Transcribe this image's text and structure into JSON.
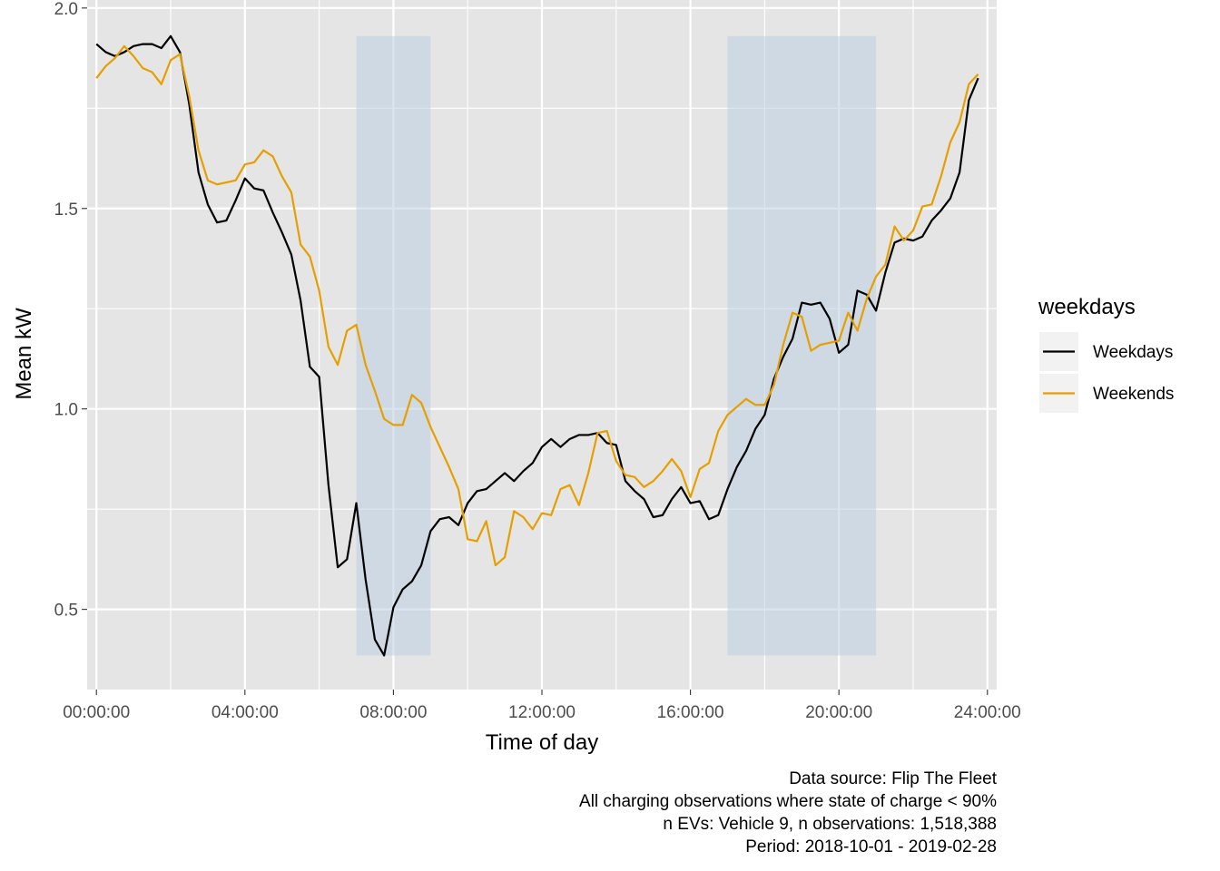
{
  "chart_data": {
    "type": "line",
    "xlabel": "Time of day",
    "ylabel": "Mean kW",
    "xlim": [
      -0.25,
      24.25
    ],
    "ylim": [
      0.3,
      2.02
    ],
    "x_ticks": [
      0,
      4,
      8,
      12,
      16,
      20,
      24
    ],
    "x_tick_labels": [
      "00:00:00",
      "04:00:00",
      "08:00:00",
      "12:00:00",
      "16:00:00",
      "20:00:00",
      "24:00:00"
    ],
    "y_ticks": [
      0.5,
      1.0,
      1.5,
      2.0
    ],
    "y_tick_labels": [
      "0.5",
      "1.0",
      "1.5",
      "2.0"
    ],
    "grid": true,
    "background": "#e5e5e5",
    "highlight_bands": [
      {
        "x_start": 7,
        "x_end": 9,
        "y_start": 0.385,
        "y_end": 1.93,
        "color": "#bdd0e3"
      },
      {
        "x_start": 17,
        "x_end": 21,
        "y_start": 0.385,
        "y_end": 1.93,
        "color": "#bdd0e3"
      }
    ],
    "legend": {
      "title": "weekdays",
      "position": "right"
    },
    "x_step_hours": 0.25,
    "series": [
      {
        "name": "Weekdays",
        "color": "#000000",
        "values": [
          1.91,
          1.89,
          1.88,
          1.89,
          1.905,
          1.91,
          1.91,
          1.9,
          1.93,
          1.89,
          1.76,
          1.59,
          1.51,
          1.465,
          1.47,
          1.52,
          1.575,
          1.55,
          1.545,
          1.49,
          1.44,
          1.385,
          1.27,
          1.105,
          1.08,
          0.81,
          0.605,
          0.625,
          0.765,
          0.575,
          0.425,
          0.385,
          0.505,
          0.55,
          0.57,
          0.61,
          0.695,
          0.725,
          0.73,
          0.71,
          0.765,
          0.795,
          0.8,
          0.82,
          0.84,
          0.82,
          0.845,
          0.865,
          0.905,
          0.925,
          0.905,
          0.925,
          0.935,
          0.935,
          0.94,
          0.915,
          0.91,
          0.82,
          0.795,
          0.775,
          0.73,
          0.735,
          0.775,
          0.805,
          0.765,
          0.77,
          0.725,
          0.735,
          0.8,
          0.855,
          0.895,
          0.95,
          0.985,
          1.075,
          1.13,
          1.175,
          1.265,
          1.26,
          1.265,
          1.225,
          1.14,
          1.16,
          1.295,
          1.285,
          1.245,
          1.34,
          1.415,
          1.425,
          1.42,
          1.43,
          1.47,
          1.495,
          1.525,
          1.59,
          1.77,
          1.825
        ]
      },
      {
        "name": "Weekends",
        "color": "#e69f00",
        "values": [
          1.825,
          1.855,
          1.875,
          1.905,
          1.88,
          1.85,
          1.84,
          1.81,
          1.87,
          1.885,
          1.78,
          1.645,
          1.57,
          1.56,
          1.565,
          1.57,
          1.61,
          1.615,
          1.645,
          1.63,
          1.58,
          1.54,
          1.41,
          1.38,
          1.295,
          1.155,
          1.11,
          1.195,
          1.21,
          1.11,
          1.045,
          0.975,
          0.96,
          0.96,
          1.035,
          1.015,
          0.955,
          0.905,
          0.855,
          0.8,
          0.675,
          0.67,
          0.72,
          0.61,
          0.63,
          0.745,
          0.73,
          0.7,
          0.74,
          0.735,
          0.8,
          0.81,
          0.76,
          0.84,
          0.94,
          0.945,
          0.87,
          0.835,
          0.83,
          0.805,
          0.82,
          0.845,
          0.875,
          0.845,
          0.78,
          0.85,
          0.865,
          0.945,
          0.985,
          1.005,
          1.025,
          1.01,
          1.01,
          1.06,
          1.16,
          1.24,
          1.23,
          1.145,
          1.16,
          1.165,
          1.17,
          1.24,
          1.195,
          1.275,
          1.33,
          1.36,
          1.455,
          1.42,
          1.445,
          1.505,
          1.51,
          1.58,
          1.665,
          1.715,
          1.81,
          1.835
        ]
      }
    ]
  },
  "caption": {
    "lines": [
      "Data source: Flip The Fleet",
      "All charging observations where state of charge < 90%",
      "n EVs: Vehicle 9, n observations: 1,518,388",
      "Period: 2018-10-01 - 2019-02-28"
    ]
  }
}
